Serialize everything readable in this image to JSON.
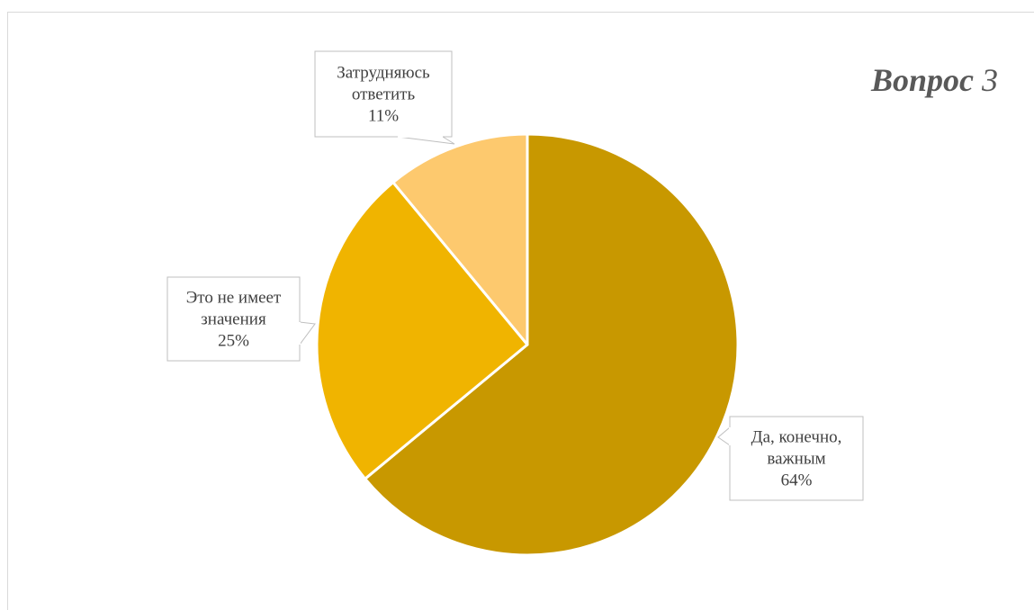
{
  "chart_data": {
    "type": "pie",
    "title": {
      "main": "Вопрос",
      "number": "3"
    },
    "slices": [
      {
        "label_lines": [
          "Да, конечно,",
          "важным"
        ],
        "percent_label": "64%",
        "value": 64,
        "color": "#c89800"
      },
      {
        "label_lines": [
          "Это не имеет",
          "значения"
        ],
        "percent_label": "25%",
        "value": 25,
        "color": "#f0b400"
      },
      {
        "label_lines": [
          "Затрудняюсь",
          "ответить"
        ],
        "percent_label": "11%",
        "value": 11,
        "color": "#fdc96e"
      }
    ],
    "direction": "clockwise",
    "start_angle": "12 o'clock"
  }
}
